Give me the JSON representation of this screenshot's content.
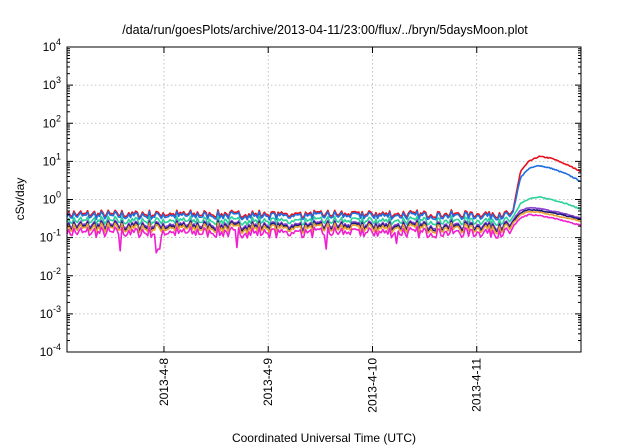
{
  "chart_data": {
    "type": "line",
    "title": "/data/run/goesPlots/archive/2013-04-11/23:00/flux/../bryn/5daysMoon.plot",
    "xlabel": "Coordinated Universal Time (UTC)",
    "ylabel": "cSv/day",
    "yscale": "log",
    "ylim": [
      0.0001,
      10000
    ],
    "xlim_days": [
      7.07,
      12.0
    ],
    "grid": true,
    "x_ticks": [
      {
        "label": "2013-4-8",
        "x": 8
      },
      {
        "label": "2013-4-9",
        "x": 9
      },
      {
        "label": "2013-4-10",
        "x": 10
      },
      {
        "label": "2013-4-11",
        "x": 11
      }
    ],
    "y_ticks": [
      {
        "base": "10",
        "exp": "-4",
        "value": 0.0001
      },
      {
        "base": "10",
        "exp": "-3",
        "value": 0.001
      },
      {
        "base": "10",
        "exp": "-2",
        "value": 0.01
      },
      {
        "base": "10",
        "exp": "-1",
        "value": 0.1
      },
      {
        "base": "10",
        "exp": "0",
        "value": 1
      },
      {
        "base": "10",
        "exp": "1",
        "value": 10
      },
      {
        "base": "10",
        "exp": "2",
        "value": 100
      },
      {
        "base": "10",
        "exp": "3",
        "value": 1000
      },
      {
        "base": "10",
        "exp": "4",
        "value": 10000
      }
    ],
    "x_breakpoints": [
      7.07,
      11.35,
      11.42,
      11.5,
      11.6,
      11.72,
      11.85,
      12.0
    ],
    "series": [
      {
        "color": "#e8111b",
        "baseline": 0.42,
        "event": [
          0.42,
          0.55,
          5.5,
          10,
          13.5,
          12,
          8.5,
          5.5
        ]
      },
      {
        "color": "#1f6fe0",
        "baseline": 0.38,
        "event": [
          0.38,
          0.5,
          3.8,
          6.5,
          7.8,
          6.5,
          4.8,
          3.0
        ]
      },
      {
        "color": "#2bd39a",
        "baseline": 0.28,
        "event": [
          0.28,
          0.35,
          0.8,
          1.05,
          1.15,
          1.0,
          0.8,
          0.55
        ]
      },
      {
        "color": "#8a3fd0",
        "baseline": 0.22,
        "event": [
          0.22,
          0.3,
          0.52,
          0.6,
          0.58,
          0.5,
          0.42,
          0.32
        ]
      },
      {
        "color": "#1a1a7a",
        "baseline": 0.2,
        "event": [
          0.2,
          0.27,
          0.45,
          0.55,
          0.52,
          0.45,
          0.38,
          0.3
        ]
      },
      {
        "color": "#e8a030",
        "baseline": 0.18,
        "event": [
          0.18,
          0.24,
          0.4,
          0.48,
          0.46,
          0.4,
          0.33,
          0.27
        ]
      },
      {
        "color": "#f020d0",
        "baseline": 0.14,
        "event": [
          0.14,
          0.2,
          0.33,
          0.4,
          0.38,
          0.33,
          0.27,
          0.21
        ]
      }
    ],
    "magenta_dips": [
      {
        "x": 7.58,
        "value": 0.045
      },
      {
        "x": 7.92,
        "value": 0.04
      },
      {
        "x": 7.95,
        "value": 0.05
      },
      {
        "x": 8.7,
        "value": 0.055
      },
      {
        "x": 9.56,
        "value": 0.05
      },
      {
        "x": 10.23,
        "value": 0.07
      }
    ]
  }
}
